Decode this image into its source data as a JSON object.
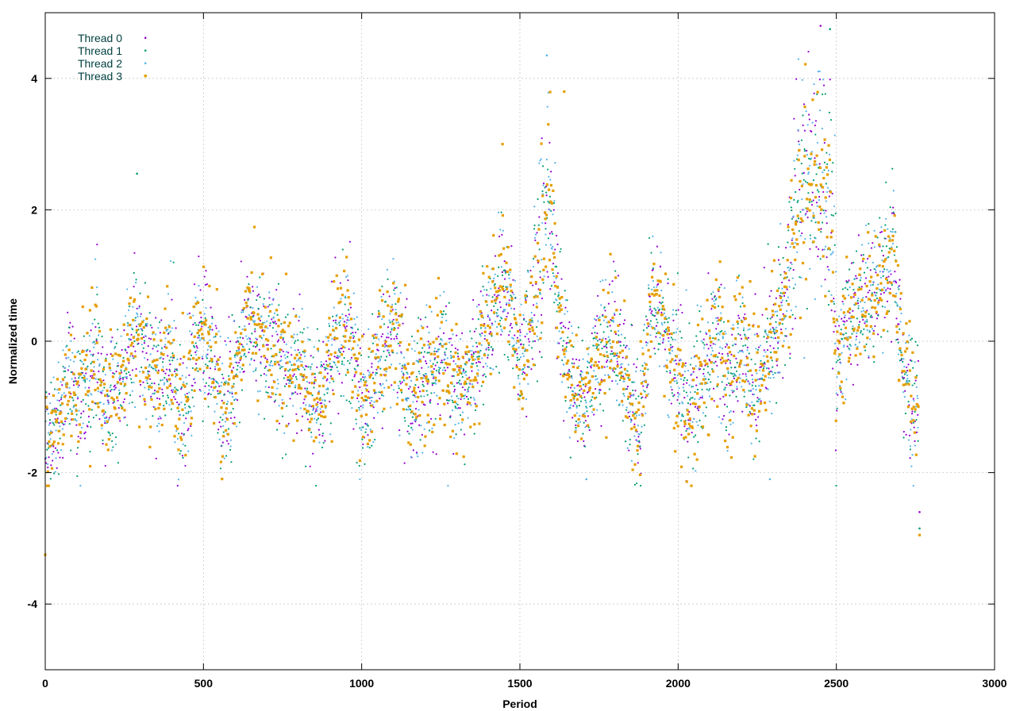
{
  "chart_data": {
    "type": "scatter",
    "title": "",
    "xlabel": "Period",
    "ylabel": "Normalized time",
    "xlim": [
      0,
      3000
    ],
    "ylim": [
      -5,
      5
    ],
    "x_ticks": [
      0,
      500,
      1000,
      1500,
      2000,
      2500,
      3000
    ],
    "y_ticks": [
      -4,
      -2,
      0,
      2,
      4
    ],
    "x_tick_labels": [
      "0",
      "500",
      "1000",
      "1500",
      "2000",
      "2500",
      "3000"
    ],
    "y_tick_labels": [
      "-4",
      "-2",
      "0",
      "2",
      "4"
    ],
    "grid": true,
    "legend_position": "top-left",
    "x_domain": [
      0,
      2760
    ],
    "trend_knots": [
      [
        0,
        -1.6
      ],
      [
        30,
        -1.3
      ],
      [
        50,
        -0.9
      ],
      [
        80,
        -0.4
      ],
      [
        100,
        -1.1
      ],
      [
        130,
        -0.7
      ],
      [
        160,
        -0.2
      ],
      [
        190,
        -1.0
      ],
      [
        210,
        -0.9
      ],
      [
        250,
        -0.4
      ],
      [
        290,
        0.3
      ],
      [
        320,
        -0.3
      ],
      [
        360,
        -0.6
      ],
      [
        390,
        0.0
      ],
      [
        420,
        -1.1
      ],
      [
        450,
        -0.9
      ],
      [
        480,
        0.2
      ],
      [
        510,
        -0.1
      ],
      [
        540,
        -0.4
      ],
      [
        560,
        -1.1
      ],
      [
        600,
        -0.5
      ],
      [
        640,
        0.3
      ],
      [
        680,
        0.1
      ],
      [
        730,
        -0.1
      ],
      [
        770,
        -0.5
      ],
      [
        800,
        -0.2
      ],
      [
        840,
        -1.0
      ],
      [
        870,
        -0.8
      ],
      [
        920,
        0.0
      ],
      [
        960,
        0.2
      ],
      [
        1000,
        -1.0
      ],
      [
        1050,
        -0.4
      ],
      [
        1100,
        0.3
      ],
      [
        1150,
        -0.9
      ],
      [
        1200,
        -0.6
      ],
      [
        1250,
        -0.1
      ],
      [
        1300,
        -0.8
      ],
      [
        1340,
        -0.6
      ],
      [
        1400,
        0.3
      ],
      [
        1450,
        1.0
      ],
      [
        1480,
        0.2
      ],
      [
        1510,
        -0.2
      ],
      [
        1550,
        0.6
      ],
      [
        1590,
        2.2
      ],
      [
        1610,
        1.4
      ],
      [
        1630,
        0.2
      ],
      [
        1660,
        -0.6
      ],
      [
        1700,
        -1.0
      ],
      [
        1750,
        -0.2
      ],
      [
        1800,
        0.1
      ],
      [
        1850,
        -0.9
      ],
      [
        1880,
        -1.3
      ],
      [
        1920,
        0.8
      ],
      [
        1950,
        0.2
      ],
      [
        1990,
        -0.4
      ],
      [
        2030,
        -1.0
      ],
      [
        2080,
        -0.5
      ],
      [
        2120,
        0.2
      ],
      [
        2160,
        -0.7
      ],
      [
        2200,
        0.1
      ],
      [
        2240,
        -0.8
      ],
      [
        2270,
        -0.3
      ],
      [
        2320,
        0.3
      ],
      [
        2350,
        1.0
      ],
      [
        2380,
        2.3
      ],
      [
        2420,
        2.6
      ],
      [
        2460,
        2.2
      ],
      [
        2490,
        1.6
      ],
      [
        2500,
        -0.5
      ],
      [
        2530,
        0.2
      ],
      [
        2600,
        0.6
      ],
      [
        2650,
        1.0
      ],
      [
        2680,
        1.4
      ],
      [
        2710,
        -0.4
      ],
      [
        2740,
        -0.8
      ],
      [
        2760,
        -1.0
      ]
    ],
    "outliers": [
      {
        "x": 0,
        "y": -3.25,
        "series": "Thread 3"
      },
      {
        "x": 2763,
        "y": -2.6,
        "series": "Thread 0"
      },
      {
        "x": 2763,
        "y": -2.85,
        "series": "Thread 1"
      },
      {
        "x": 2763,
        "y": -2.95,
        "series": "Thread 3"
      },
      {
        "x": 290,
        "y": 2.55,
        "series": "Thread 1"
      },
      {
        "x": 2450,
        "y": 4.8,
        "series": "Thread 0"
      },
      {
        "x": 2480,
        "y": 4.75,
        "series": "Thread 1"
      },
      {
        "x": 1585,
        "y": 4.35,
        "series": "Thread 2"
      },
      {
        "x": 1640,
        "y": 3.8,
        "series": "Thread 3"
      },
      {
        "x": 1445,
        "y": 3.0,
        "series": "Thread 3"
      },
      {
        "x": 2290,
        "y": -2.1,
        "series": "Thread 2"
      },
      {
        "x": 1710,
        "y": -2.1,
        "series": "Thread 2"
      }
    ],
    "series": [
      {
        "name": "Thread 0",
        "color": "#9400d3",
        "marker": "dot",
        "points_per_series": 1380
      },
      {
        "name": "Thread 1",
        "color": "#009e73",
        "marker": "dot",
        "points_per_series": 1380
      },
      {
        "name": "Thread 2",
        "color": "#56b4e9",
        "marker": "dot",
        "points_per_series": 1380
      },
      {
        "name": "Thread 3",
        "color": "#e69f00",
        "marker": "square",
        "points_per_series": 1380
      }
    ]
  }
}
